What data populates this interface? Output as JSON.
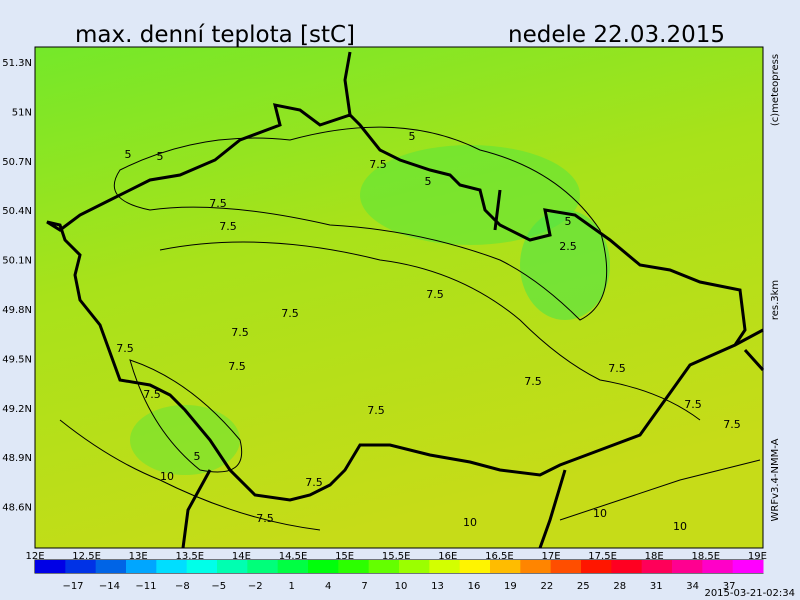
{
  "header": {
    "title": "max. denní teplota [stC]",
    "date": "nedele 22.03.2015"
  },
  "map": {
    "lat_labels": [
      "51.3N",
      "51N",
      "50.7N",
      "50.4N",
      "50.1N",
      "49.8N",
      "49.5N",
      "49.2N",
      "48.9N",
      "48.6N"
    ],
    "lon_labels": [
      "12E",
      "12.5E",
      "13E",
      "13.5E",
      "14E",
      "14.5E",
      "15E",
      "15.5E",
      "16E",
      "16.5E",
      "17E",
      "17.5E",
      "18E",
      "18.5E",
      "19E"
    ],
    "contour_labels": [
      "5",
      "5",
      "7.5",
      "7.5",
      "7.5",
      "5",
      "5",
      "5",
      "2.5",
      "7.5",
      "7.5",
      "7.5",
      "7.5",
      "7.5",
      "7.5",
      "7.5",
      "7.5",
      "7.5",
      "7.5",
      "7.5",
      "5",
      "10",
      "7.5",
      "10",
      "10",
      "10",
      "7.5"
    ]
  },
  "colorbar": {
    "labels": [
      "−17",
      "−14",
      "−11",
      "−8",
      "−5",
      "−2",
      "1",
      "4",
      "7",
      "10",
      "13",
      "16",
      "19",
      "22",
      "25",
      "28",
      "31",
      "34",
      "37"
    ]
  },
  "side": {
    "copyright": "(c)meteopress",
    "resolution": "res.3km",
    "model": "WRFv3.4-NMM-A"
  },
  "footer": {
    "timestamp": "2015-03-21-02:34"
  }
}
